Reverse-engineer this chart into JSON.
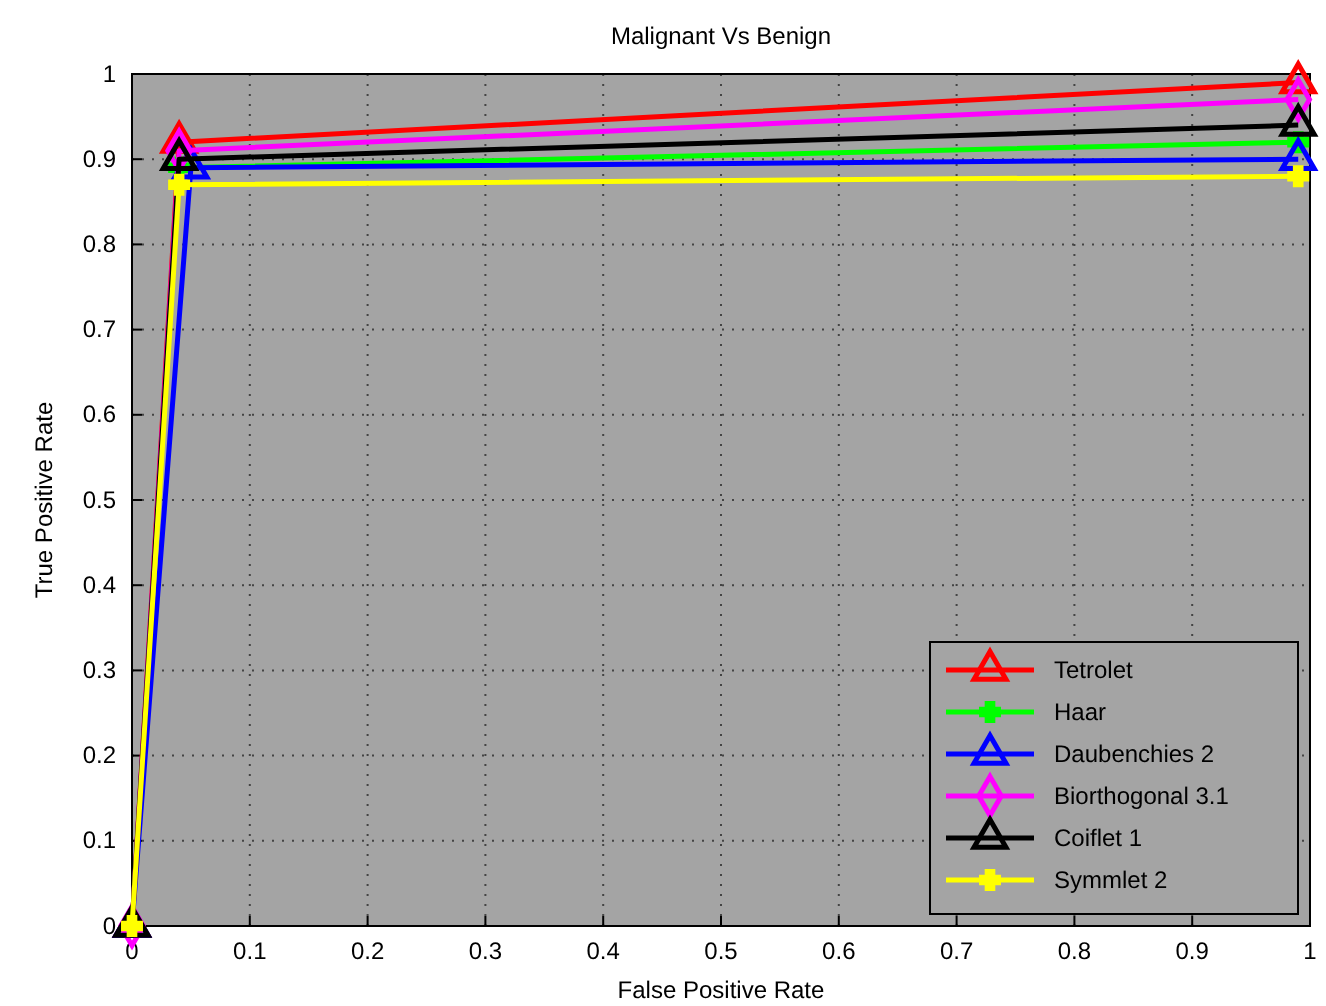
{
  "chart_data": {
    "type": "line",
    "title": "Malignant Vs Benign",
    "xlabel": "False Positive Rate",
    "ylabel": "True Positive Rate",
    "xlim": [
      0,
      1
    ],
    "ylim": [
      0,
      1
    ],
    "xticks": [
      0,
      0.1,
      0.2,
      0.3,
      0.4,
      0.5,
      0.6,
      0.7,
      0.8,
      0.9,
      1
    ],
    "yticks": [
      0,
      0.1,
      0.2,
      0.3,
      0.4,
      0.5,
      0.6,
      0.7,
      0.8,
      0.9,
      1
    ],
    "grid": true,
    "legend": "bottom right",
    "line_style": "solid",
    "series": [
      {
        "name": "Tetrolet",
        "color": "#ff0000",
        "marker": "triangle",
        "x": [
          0,
          0.04,
          0.99
        ],
        "values": [
          0,
          0.92,
          0.99
        ]
      },
      {
        "name": "Haar",
        "color": "#00ff00",
        "marker": "cross",
        "x": [
          0,
          0.04,
          0.99
        ],
        "values": [
          0,
          0.89,
          0.92
        ]
      },
      {
        "name": "Daubenchies 2",
        "color": "#0000ff",
        "marker": "triangle",
        "x": [
          0,
          0.05,
          0.99
        ],
        "values": [
          0,
          0.89,
          0.9
        ]
      },
      {
        "name": "Biorthogonal 3.1",
        "color": "#ff00ff",
        "marker": "diamond",
        "x": [
          0,
          0.04,
          0.99
        ],
        "values": [
          0,
          0.91,
          0.97
        ]
      },
      {
        "name": "Coiflet 1",
        "color": "#000000",
        "marker": "triangle",
        "x": [
          0,
          0.04,
          0.99
        ],
        "values": [
          0,
          0.9,
          0.94
        ]
      },
      {
        "name": "Symmlet 2",
        "color": "#ffff00",
        "marker": "cross",
        "x": [
          0,
          0.04,
          0.99
        ],
        "values": [
          0,
          0.87,
          0.88
        ]
      }
    ]
  }
}
